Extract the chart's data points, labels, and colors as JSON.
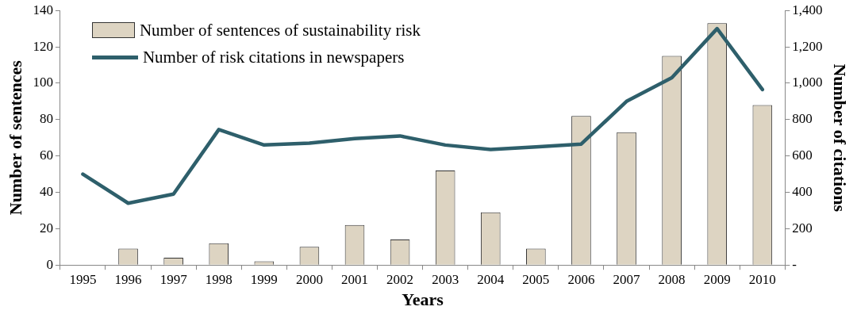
{
  "chart_data": {
    "type": "bar",
    "xlabel": "Years",
    "ylabel": "Number of sentences",
    "y2label": "Number of citations",
    "categories": [
      "1995",
      "1996",
      "1997",
      "1998",
      "1999",
      "2000",
      "2001",
      "2002",
      "2003",
      "2004",
      "2005",
      "2006",
      "2007",
      "2008",
      "2009",
      "2010"
    ],
    "series": [
      {
        "name": "Number of sentences of sustainability risk",
        "color": "#ddd4c2",
        "values": [
          0,
          9,
          4,
          12,
          2,
          10,
          22,
          14,
          52,
          29,
          9,
          82,
          73,
          115,
          133,
          88
        ]
      },
      {
        "name": "Number of risk citations in newspapers",
        "type": "line",
        "axis": "y2",
        "color": "#2e5f6b",
        "values": [
          500,
          340,
          390,
          745,
          660,
          670,
          695,
          710,
          660,
          635,
          650,
          665,
          900,
          1030,
          1300,
          965
        ]
      }
    ],
    "ylim": [
      0,
      140
    ],
    "yticks": [
      0,
      20,
      40,
      60,
      80,
      100,
      120,
      140
    ],
    "y2lim": [
      0,
      1400
    ],
    "y2ticks": [
      {
        "value": 0,
        "label": "-"
      },
      {
        "value": 200,
        "label": "200"
      },
      {
        "value": 400,
        "label": "400"
      },
      {
        "value": 600,
        "label": "600"
      },
      {
        "value": 800,
        "label": "800"
      },
      {
        "value": 1000,
        "label": "1,000"
      },
      {
        "value": 1200,
        "label": "1,200"
      },
      {
        "value": 1400,
        "label": "1,400"
      }
    ],
    "grid": false,
    "legend": "top left",
    "marker": "none",
    "line_style": "solid"
  }
}
